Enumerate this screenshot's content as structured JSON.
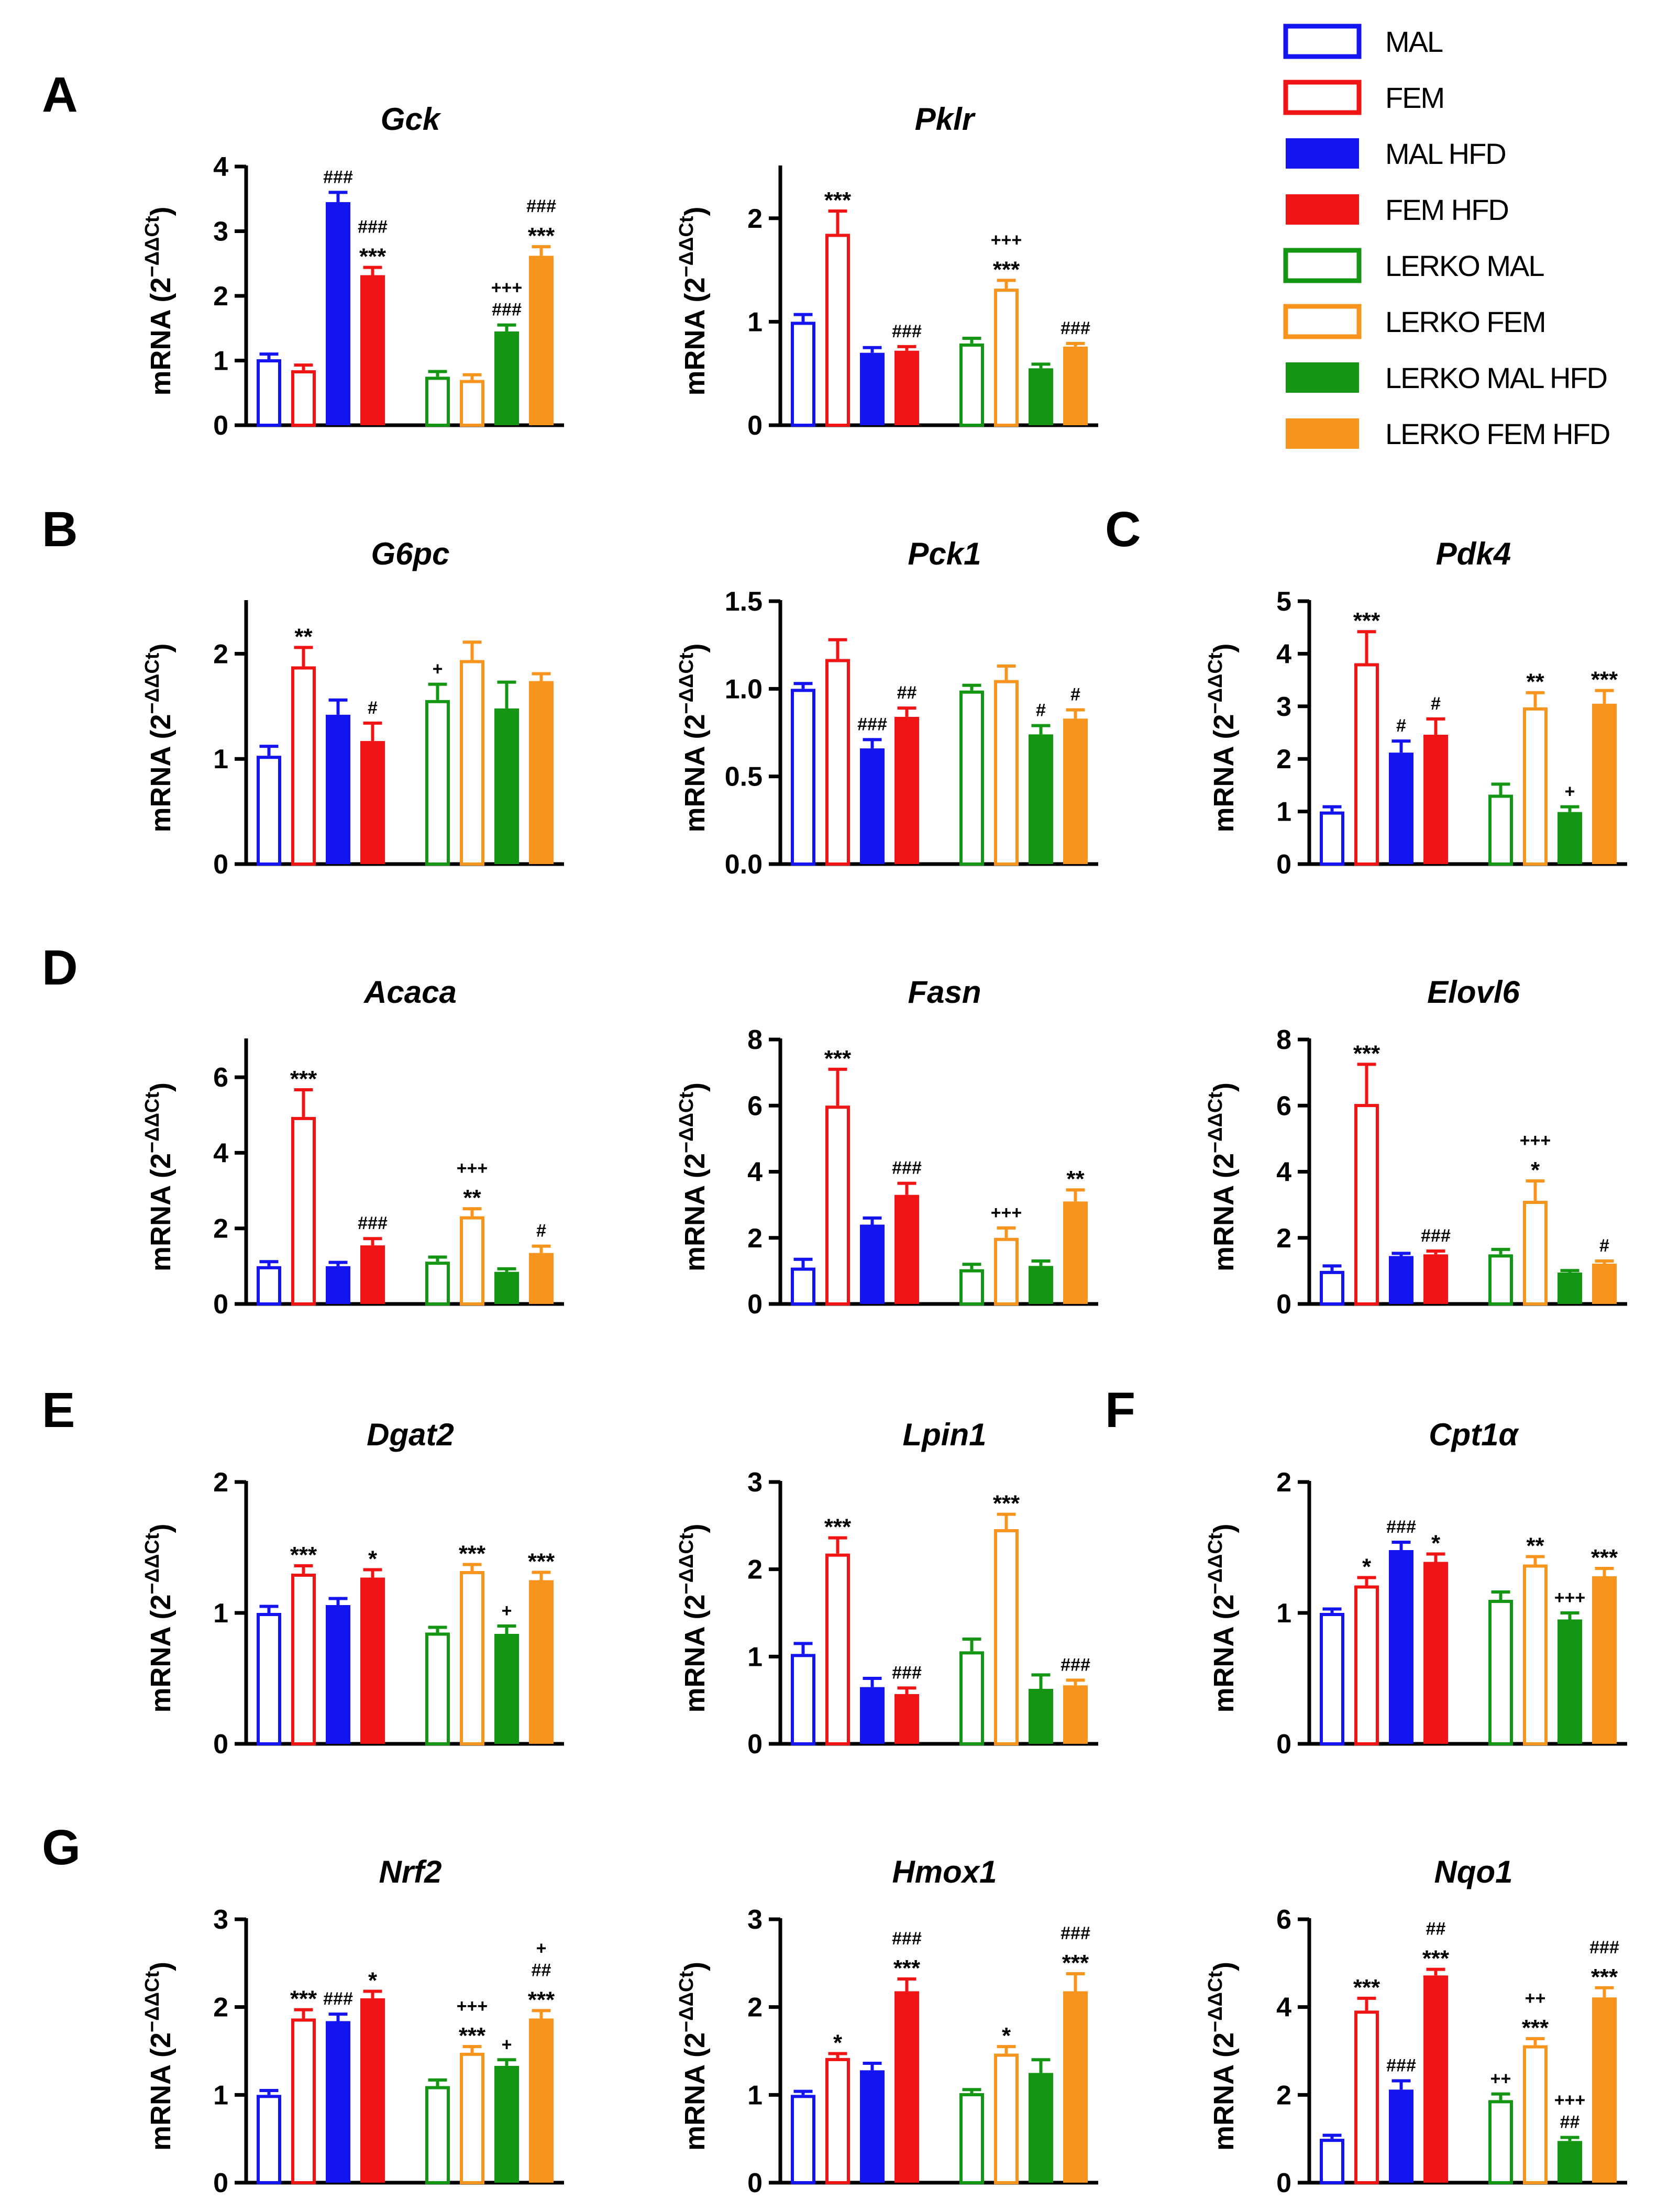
{
  "figure": {
    "ylabel_prefix": "mRNA (2",
    "ylabel_superscript": "−ΔΔCt",
    "ylabel_suffix": ")"
  },
  "legend": [
    {
      "label": "MAL",
      "color": "#1414f0",
      "fill": false
    },
    {
      "label": "FEM",
      "color": "#f01414",
      "fill": false
    },
    {
      "label": "MAL HFD",
      "color": "#1414f0",
      "fill": true
    },
    {
      "label": "FEM HFD",
      "color": "#f01414",
      "fill": true
    },
    {
      "label": "LERKO MAL",
      "color": "#149614",
      "fill": false
    },
    {
      "label": "LERKO FEM",
      "color": "#f7941d",
      "fill": false
    },
    {
      "label": "LERKO MAL HFD",
      "color": "#149614",
      "fill": true
    },
    {
      "label": "LERKO FEM HFD",
      "color": "#f7941d",
      "fill": true
    }
  ],
  "chart_data": [
    {
      "type": "bar",
      "panel": "A",
      "title": "Gck",
      "ylim": [
        0,
        4
      ],
      "yticks": [
        "0",
        "1",
        "2",
        "3",
        "4"
      ],
      "values": [
        1.02,
        0.85,
        3.45,
        2.32,
        0.75,
        0.7,
        1.45,
        2.62
      ],
      "errors": [
        0.08,
        0.08,
        0.15,
        0.12,
        0.08,
        0.08,
        0.1,
        0.14
      ],
      "annotations": [
        [],
        [],
        [
          "###"
        ],
        [
          "###",
          "***"
        ],
        [],
        [],
        [
          "+++",
          "###"
        ],
        [
          "###",
          "***"
        ]
      ]
    },
    {
      "type": "bar",
      "panel": "",
      "title": "Pklr",
      "ylim": [
        0,
        2.5
      ],
      "yticks": [
        "0",
        "1",
        "2"
      ],
      "values": [
        1.0,
        1.85,
        0.7,
        0.72,
        0.79,
        1.32,
        0.55,
        0.76
      ],
      "errors": [
        0.07,
        0.22,
        0.05,
        0.04,
        0.05,
        0.08,
        0.04,
        0.03
      ],
      "annotations": [
        [],
        [
          "***"
        ],
        [],
        [
          "###"
        ],
        [],
        [
          "+++",
          "***"
        ],
        [],
        [
          "###"
        ]
      ]
    },
    {
      "type": "bar",
      "panel": "B",
      "title": "G6pc",
      "ylim": [
        0,
        2.5
      ],
      "yticks": [
        "0",
        "1",
        "2"
      ],
      "values": [
        1.03,
        1.88,
        1.42,
        1.17,
        1.56,
        1.94,
        1.48,
        1.74
      ],
      "errors": [
        0.09,
        0.18,
        0.14,
        0.17,
        0.15,
        0.17,
        0.25,
        0.07
      ],
      "annotations": [
        [],
        [
          "**"
        ],
        [],
        [
          "#"
        ],
        [
          "+"
        ],
        [],
        [],
        []
      ]
    },
    {
      "type": "bar",
      "panel": "",
      "title": "Pck1",
      "ylim": [
        0,
        1.5
      ],
      "yticks": [
        "0.0",
        "0.5",
        "1.0",
        "1.5"
      ],
      "values": [
        1.0,
        1.17,
        0.66,
        0.84,
        0.99,
        1.05,
        0.74,
        0.83
      ],
      "errors": [
        0.03,
        0.11,
        0.05,
        0.05,
        0.03,
        0.08,
        0.05,
        0.05
      ],
      "annotations": [
        [],
        [],
        [
          "###"
        ],
        [
          "##"
        ],
        [],
        [],
        [
          "#"
        ],
        [
          "#"
        ]
      ]
    },
    {
      "type": "bar",
      "panel": "C",
      "title": "Pdk4",
      "ylim": [
        0,
        5
      ],
      "yticks": [
        "0",
        "1",
        "2",
        "3",
        "4",
        "5"
      ],
      "values": [
        1.0,
        3.82,
        2.12,
        2.46,
        1.32,
        2.98,
        0.99,
        3.05
      ],
      "errors": [
        0.09,
        0.6,
        0.22,
        0.3,
        0.2,
        0.28,
        0.1,
        0.25
      ],
      "annotations": [
        [],
        [
          "***"
        ],
        [
          "#"
        ],
        [
          "#"
        ],
        [],
        [
          "**"
        ],
        [
          "+"
        ],
        [
          "***"
        ]
      ]
    },
    {
      "type": "bar",
      "panel": "D",
      "title": "Acaca",
      "ylim": [
        0,
        7
      ],
      "yticks": [
        "0",
        "2",
        "4",
        "6"
      ],
      "values": [
        1.0,
        4.95,
        1.0,
        1.55,
        1.12,
        2.32,
        0.85,
        1.35
      ],
      "errors": [
        0.12,
        0.72,
        0.1,
        0.18,
        0.12,
        0.2,
        0.08,
        0.18
      ],
      "annotations": [
        [],
        [
          "***"
        ],
        [],
        [
          "###"
        ],
        [],
        [
          "+++",
          "**"
        ],
        [],
        [
          "#"
        ]
      ]
    },
    {
      "type": "bar",
      "panel": "",
      "title": "Fasn",
      "ylim": [
        0,
        8
      ],
      "yticks": [
        "0",
        "2",
        "4",
        "6",
        "8"
      ],
      "values": [
        1.1,
        6.0,
        2.4,
        3.3,
        1.05,
        2.0,
        1.15,
        3.1
      ],
      "errors": [
        0.25,
        1.1,
        0.2,
        0.35,
        0.15,
        0.3,
        0.15,
        0.35
      ],
      "annotations": [
        [],
        [
          "***"
        ],
        [],
        [
          "###"
        ],
        [],
        [
          "+++"
        ],
        [],
        [
          "**"
        ]
      ]
    },
    {
      "type": "bar",
      "panel": "",
      "title": "Elovl6",
      "ylim": [
        0,
        8
      ],
      "yticks": [
        "0",
        "2",
        "4",
        "6",
        "8"
      ],
      "values": [
        1.0,
        6.05,
        1.45,
        1.5,
        1.5,
        3.12,
        0.95,
        1.22
      ],
      "errors": [
        0.15,
        1.2,
        0.08,
        0.1,
        0.15,
        0.6,
        0.06,
        0.08
      ],
      "annotations": [
        [],
        [
          "***"
        ],
        [],
        [
          "###"
        ],
        [],
        [
          "+++",
          "*"
        ],
        [],
        [
          "#"
        ]
      ]
    },
    {
      "type": "bar",
      "panel": "E",
      "title": "Dgat2",
      "ylim": [
        0,
        2
      ],
      "yticks": [
        "0",
        "1",
        "2"
      ],
      "values": [
        1.0,
        1.3,
        1.06,
        1.27,
        0.85,
        1.32,
        0.84,
        1.25
      ],
      "errors": [
        0.05,
        0.06,
        0.05,
        0.06,
        0.04,
        0.05,
        0.06,
        0.06
      ],
      "annotations": [
        [],
        [
          "***"
        ],
        [],
        [
          "*"
        ],
        [],
        [
          "***"
        ],
        [
          "+"
        ],
        [
          "***"
        ]
      ]
    },
    {
      "type": "bar",
      "panel": "",
      "title": "Lpin1",
      "ylim": [
        0,
        3
      ],
      "yticks": [
        "0",
        "1",
        "2",
        "3"
      ],
      "values": [
        1.03,
        2.18,
        0.65,
        0.57,
        1.06,
        2.46,
        0.63,
        0.67
      ],
      "errors": [
        0.12,
        0.18,
        0.1,
        0.07,
        0.14,
        0.17,
        0.16,
        0.06
      ],
      "annotations": [
        [],
        [
          "***"
        ],
        [],
        [
          "###"
        ],
        [],
        [
          "***"
        ],
        [],
        [
          "###"
        ]
      ]
    },
    {
      "type": "bar",
      "panel": "F",
      "title": "Cpt1α",
      "ylim": [
        0,
        2
      ],
      "yticks": [
        "0",
        "1",
        "2"
      ],
      "values": [
        1.0,
        1.21,
        1.48,
        1.39,
        1.1,
        1.37,
        0.95,
        1.28
      ],
      "errors": [
        0.03,
        0.06,
        0.06,
        0.06,
        0.06,
        0.06,
        0.05,
        0.06
      ],
      "annotations": [
        [],
        [
          "*"
        ],
        [
          "###"
        ],
        [
          "*"
        ],
        [],
        [
          "**"
        ],
        [
          "+++"
        ],
        [
          "***"
        ]
      ]
    },
    {
      "type": "bar",
      "panel": "G",
      "title": "Nrf2",
      "ylim": [
        0,
        3
      ],
      "yticks": [
        "0",
        "1",
        "2",
        "3"
      ],
      "values": [
        1.0,
        1.87,
        1.84,
        2.1,
        1.1,
        1.48,
        1.33,
        1.87
      ],
      "errors": [
        0.05,
        0.1,
        0.08,
        0.08,
        0.07,
        0.07,
        0.07,
        0.09
      ],
      "annotations": [
        [],
        [
          "***"
        ],
        [
          "###"
        ],
        [
          "*"
        ],
        [],
        [
          "+++",
          "***"
        ],
        [
          "+"
        ],
        [
          "+",
          "##",
          "***"
        ]
      ]
    },
    {
      "type": "bar",
      "panel": "",
      "title": "Hmox1",
      "ylim": [
        0,
        3
      ],
      "yticks": [
        "0",
        "1",
        "2",
        "3"
      ],
      "values": [
        1.0,
        1.42,
        1.28,
        2.18,
        1.02,
        1.47,
        1.25,
        2.18
      ],
      "errors": [
        0.04,
        0.05,
        0.08,
        0.14,
        0.04,
        0.08,
        0.15,
        0.2
      ],
      "annotations": [
        [],
        [
          "*"
        ],
        [],
        [
          "###",
          "***"
        ],
        [],
        [
          "*"
        ],
        [],
        [
          "###",
          "***"
        ]
      ]
    },
    {
      "type": "bar",
      "panel": "",
      "title": "Nqo1",
      "ylim": [
        0,
        6
      ],
      "yticks": [
        "0",
        "2",
        "4",
        "6"
      ],
      "values": [
        1.0,
        3.92,
        2.12,
        4.72,
        1.88,
        3.13,
        0.95,
        4.22
      ],
      "errors": [
        0.08,
        0.28,
        0.2,
        0.14,
        0.14,
        0.15,
        0.08,
        0.22
      ],
      "annotations": [
        [],
        [
          "***"
        ],
        [
          "###"
        ],
        [
          "##",
          "***"
        ],
        [
          "++"
        ],
        [
          "++",
          "***"
        ],
        [
          "+++",
          "##"
        ],
        [
          "###",
          "***"
        ]
      ]
    }
  ]
}
